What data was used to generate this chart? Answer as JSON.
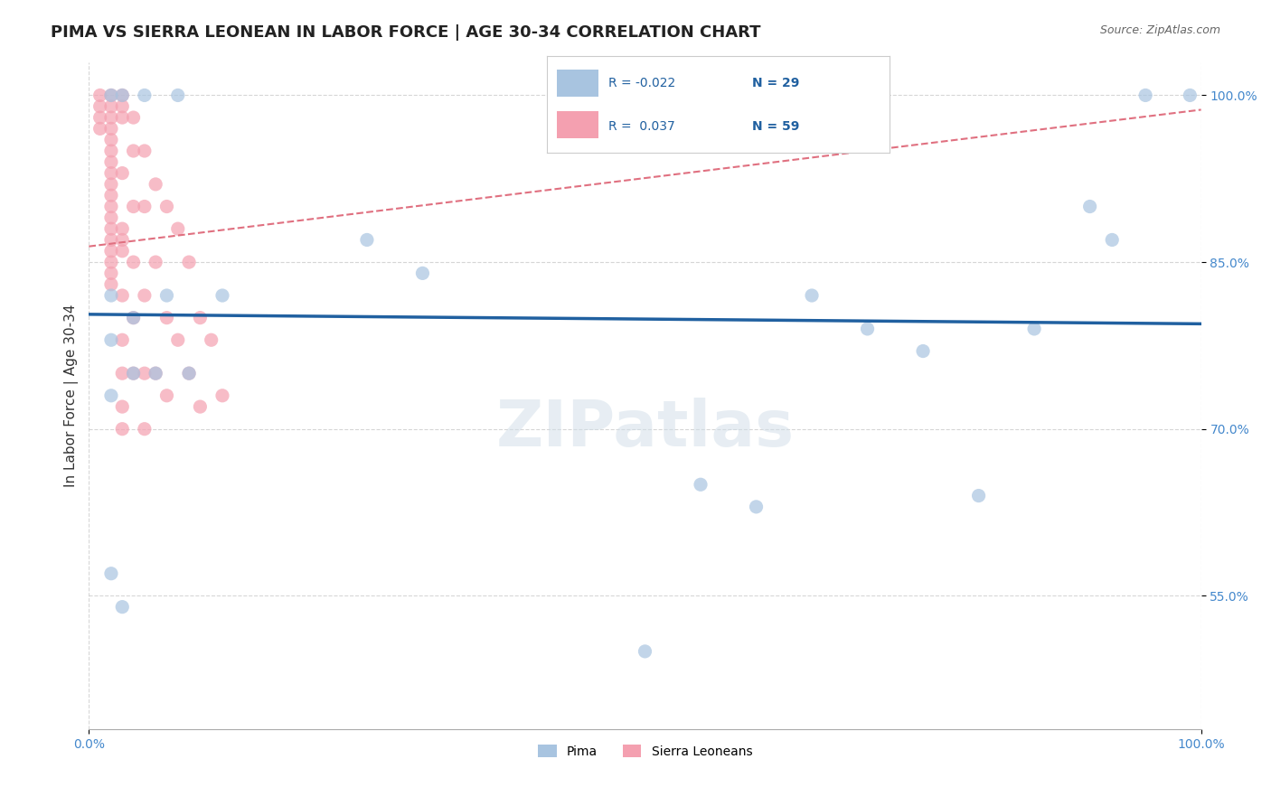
{
  "title": "PIMA VS SIERRA LEONEAN IN LABOR FORCE | AGE 30-34 CORRELATION CHART",
  "source": "Source: ZipAtlas.com",
  "xlabel": "",
  "ylabel": "In Labor Force | Age 30-34",
  "xlim": [
    0.0,
    1.0
  ],
  "ylim": [
    0.43,
    1.03
  ],
  "yticks": [
    0.55,
    0.7,
    0.85,
    1.0
  ],
  "ytick_labels": [
    "55.0%",
    "70.0%",
    "85.0%",
    "100.0%"
  ],
  "xticks": [
    0.0,
    0.2,
    0.4,
    0.6,
    0.8,
    1.0
  ],
  "xtick_labels": [
    "0.0%",
    "",
    "",
    "",
    "",
    "100.0%"
  ],
  "blue_R": -0.022,
  "blue_N": 29,
  "pink_R": 0.037,
  "pink_N": 59,
  "blue_color": "#a8c4e0",
  "pink_color": "#f4a0b0",
  "blue_line_color": "#2060a0",
  "pink_line_color": "#e07080",
  "background_color": "#ffffff",
  "grid_color": "#cccccc",
  "blue_scatter_x": [
    0.02,
    0.03,
    0.05,
    0.08,
    0.02,
    0.04,
    0.07,
    0.25,
    0.02,
    0.04,
    0.06,
    0.09,
    0.12,
    0.02,
    0.02,
    0.03,
    0.5,
    0.65,
    0.7,
    0.75,
    0.8,
    0.85,
    0.9,
    0.92,
    0.95,
    0.55,
    0.6,
    0.99,
    0.3
  ],
  "blue_scatter_y": [
    1.0,
    1.0,
    1.0,
    1.0,
    0.78,
    0.8,
    0.82,
    0.87,
    0.73,
    0.75,
    0.75,
    0.75,
    0.82,
    0.82,
    0.57,
    0.54,
    0.5,
    0.82,
    0.79,
    0.77,
    0.64,
    0.79,
    0.9,
    0.87,
    1.0,
    0.65,
    0.63,
    1.0,
    0.84
  ],
  "pink_scatter_x": [
    0.01,
    0.01,
    0.01,
    0.01,
    0.02,
    0.02,
    0.02,
    0.02,
    0.02,
    0.02,
    0.02,
    0.02,
    0.02,
    0.02,
    0.02,
    0.02,
    0.02,
    0.02,
    0.02,
    0.02,
    0.02,
    0.02,
    0.03,
    0.03,
    0.03,
    0.03,
    0.03,
    0.03,
    0.03,
    0.03,
    0.03,
    0.03,
    0.03,
    0.03,
    0.04,
    0.04,
    0.04,
    0.04,
    0.04,
    0.04,
    0.05,
    0.05,
    0.05,
    0.05,
    0.05,
    0.06,
    0.06,
    0.06,
    0.07,
    0.07,
    0.07,
    0.08,
    0.08,
    0.09,
    0.09,
    0.1,
    0.1,
    0.11,
    0.12
  ],
  "pink_scatter_y": [
    1.0,
    0.99,
    0.98,
    0.97,
    1.0,
    0.99,
    0.98,
    0.97,
    0.96,
    0.95,
    0.94,
    0.93,
    0.92,
    0.91,
    0.9,
    0.89,
    0.88,
    0.87,
    0.86,
    0.85,
    0.84,
    0.83,
    1.0,
    0.99,
    0.98,
    0.93,
    0.88,
    0.87,
    0.86,
    0.82,
    0.78,
    0.75,
    0.72,
    0.7,
    0.98,
    0.95,
    0.9,
    0.85,
    0.8,
    0.75,
    0.95,
    0.9,
    0.82,
    0.75,
    0.7,
    0.92,
    0.85,
    0.75,
    0.9,
    0.8,
    0.73,
    0.88,
    0.78,
    0.85,
    0.75,
    0.8,
    0.72,
    0.78,
    0.73
  ],
  "watermark": "ZIPatlas",
  "legend_box_color": "#ffffff",
  "title_fontsize": 13,
  "axis_label_fontsize": 11,
  "tick_fontsize": 10
}
